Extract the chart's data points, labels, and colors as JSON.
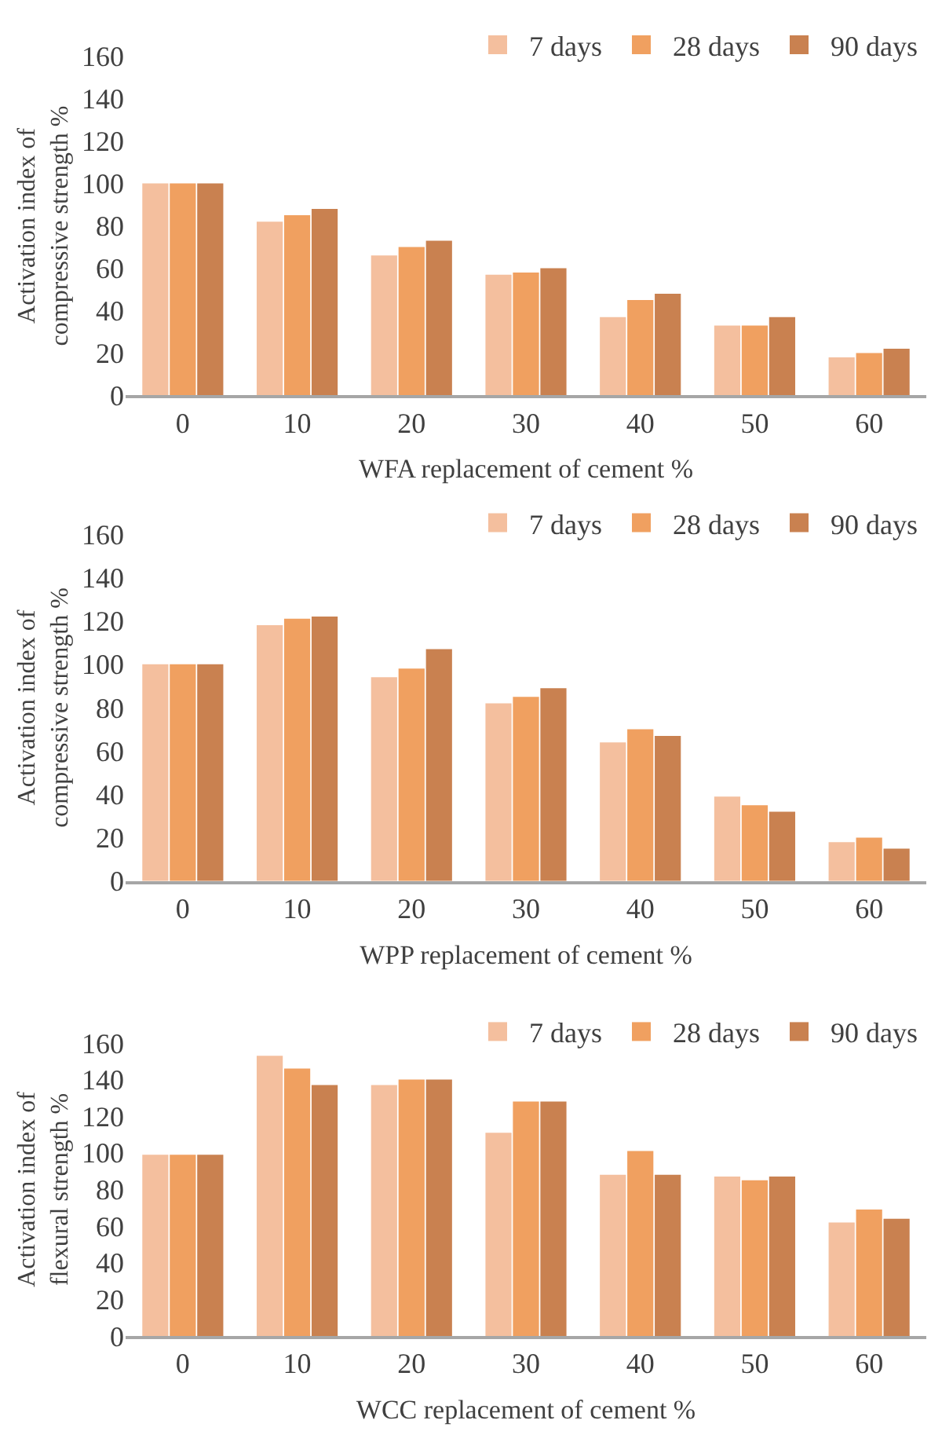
{
  "chart_data": [
    {
      "type": "bar",
      "categories": [
        "0",
        "10",
        "20",
        "30",
        "40",
        "50",
        "60"
      ],
      "xlabel": "WFA replacement of cement %",
      "ylabel": "Activation index of\ncompressive strength %",
      "ylim": [
        0,
        160
      ],
      "yticks": [
        0,
        20,
        40,
        60,
        80,
        100,
        120,
        140,
        160
      ],
      "grid": false,
      "legend": "top right",
      "series": [
        {
          "name": "7 days",
          "color": "#f4bf9e",
          "values": [
            100,
            82,
            66,
            57,
            37,
            33,
            18
          ]
        },
        {
          "name": "28 days",
          "color": "#f0a060",
          "values": [
            100,
            85,
            70,
            58,
            45,
            33,
            20
          ]
        },
        {
          "name": "90 days",
          "color": "#c98150",
          "values": [
            100,
            88,
            73,
            60,
            48,
            37,
            22
          ]
        }
      ]
    },
    {
      "type": "bar",
      "categories": [
        "0",
        "10",
        "20",
        "30",
        "40",
        "50",
        "60"
      ],
      "xlabel": "WPP replacement of cement %",
      "ylabel": "Activation index of\ncompressive strength %",
      "ylim": [
        0,
        160
      ],
      "yticks": [
        0,
        20,
        40,
        60,
        80,
        100,
        120,
        140,
        160
      ],
      "grid": false,
      "legend": "top right",
      "series": [
        {
          "name": "7 days",
          "color": "#f4bf9e",
          "values": [
            100,
            118,
            94,
            82,
            64,
            39,
            18
          ]
        },
        {
          "name": "28 days",
          "color": "#f0a060",
          "values": [
            100,
            121,
            98,
            85,
            70,
            35,
            20
          ]
        },
        {
          "name": "90 days",
          "color": "#c98150",
          "values": [
            100,
            122,
            107,
            89,
            67,
            32,
            15
          ]
        }
      ]
    },
    {
      "type": "bar",
      "categories": [
        "0",
        "10",
        "20",
        "30",
        "40",
        "50",
        "60"
      ],
      "xlabel": "WCC replacement of cement %",
      "ylabel": "Activation index of\nflexural strength %",
      "ylim": [
        0,
        160
      ],
      "yticks": [
        0,
        20,
        40,
        60,
        80,
        100,
        120,
        140,
        160
      ],
      "grid": false,
      "legend": "top right",
      "series": [
        {
          "name": "7 days",
          "color": "#f4bf9e",
          "values": [
            99,
            153,
            137,
            111,
            88,
            87,
            62
          ]
        },
        {
          "name": "28 days",
          "color": "#f0a060",
          "values": [
            99,
            146,
            140,
            128,
            101,
            85,
            69
          ]
        },
        {
          "name": "90 days",
          "color": "#c98150",
          "values": [
            99,
            137,
            140,
            128,
            88,
            87,
            64
          ]
        }
      ]
    }
  ]
}
